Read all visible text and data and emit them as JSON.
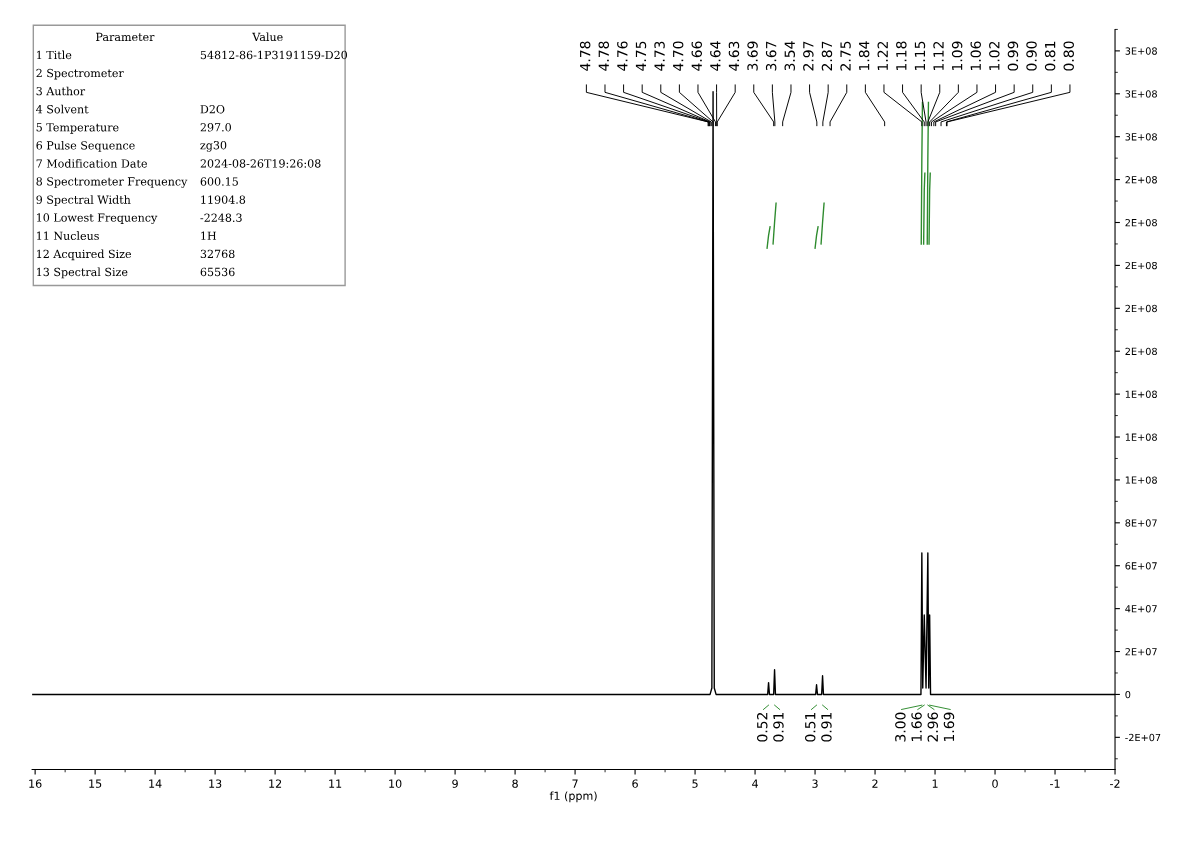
{
  "chart_data": {
    "type": "line",
    "xlabel": "f1 (ppm)",
    "xlim": [
      16.05,
      -2
    ],
    "xticks": [
      16,
      15,
      14,
      13,
      12,
      11,
      10,
      9,
      8,
      7,
      6,
      5,
      4,
      3,
      2,
      1,
      0,
      -1,
      -2
    ],
    "ylim": [
      -35000000,
      310000000
    ],
    "yticks": [
      {
        "value": -20000000,
        "label": "-2E+07"
      },
      0,
      {
        "value": 20000000,
        "label": "2E+07"
      },
      {
        "value": 40000000,
        "label": "4E+07"
      },
      {
        "value": 60000000,
        "label": "6E+07"
      },
      {
        "value": 80000000,
        "label": "8E+07"
      },
      {
        "value": 100000000,
        "label": "1E+08"
      },
      {
        "value": 120000000,
        "label": "1E+08"
      },
      {
        "value": 140000000,
        "label": "1E+08"
      },
      {
        "value": 160000000,
        "label": "2E+08"
      },
      {
        "value": 180000000,
        "label": "2E+08"
      },
      {
        "value": 200000000,
        "label": "2E+08"
      },
      {
        "value": 220000000,
        "label": "2E+08"
      },
      {
        "value": 240000000,
        "label": "2E+08"
      },
      {
        "value": 260000000,
        "label": "3E+08"
      },
      {
        "value": 280000000,
        "label": "3E+08"
      },
      {
        "value": 300000000,
        "label": "3E+08"
      }
    ],
    "grid": false,
    "legend": false,
    "marker": "none",
    "line_style": "solid",
    "series": [
      {
        "color": "#000000",
        "x": [
          16.05,
          4.75,
          4.72,
          4.7,
          4.68,
          4.65,
          3.79,
          3.775,
          3.76,
          3.69,
          3.675,
          3.66,
          3.54,
          2.99,
          2.975,
          2.96,
          2.89,
          2.875,
          2.86,
          2.75,
          1.84,
          1.235,
          1.22,
          1.205,
          1.18,
          1.15,
          1.12,
          1.105,
          1.09,
          1.075,
          1.06,
          1.02,
          0.99,
          0.9,
          0.81,
          0.8,
          -2
        ],
        "values": [
          0,
          0,
          3000000,
          281000000,
          3000000,
          0,
          0,
          5500000,
          0,
          0,
          11500000,
          0,
          0,
          0,
          4500000,
          0,
          0,
          8700000,
          0,
          0,
          0,
          0,
          66000000,
          3000000,
          37000000,
          3000000,
          66000000,
          3000000,
          37000000,
          0,
          0,
          0,
          0,
          0,
          0,
          0,
          0
        ]
      },
      {
        "color": "#2e8b2e",
        "x": [
          3.8,
          3.775,
          3.75
        ],
        "values": [
          208000000,
          214000000,
          218000000
        ]
      },
      {
        "color": "#2e8b2e",
        "x": [
          3.7,
          3.675,
          3.65
        ],
        "values": [
          210000000,
          220000000,
          229000000
        ]
      },
      {
        "color": "#2e8b2e",
        "x": [
          3.0,
          2.975,
          2.95
        ],
        "values": [
          208000000,
          214000000,
          218000000
        ]
      },
      {
        "color": "#2e8b2e",
        "x": [
          2.9,
          2.875,
          2.85
        ],
        "values": [
          210000000,
          220000000,
          229000000
        ]
      },
      {
        "color": "#2e8b2e",
        "x": [
          1.23,
          1.22,
          1.21
        ],
        "values": [
          210000000,
          250000000,
          276000000
        ]
      },
      {
        "color": "#2e8b2e",
        "x": [
          1.19,
          1.18,
          1.17
        ],
        "values": [
          210000000,
          235000000,
          243000000
        ]
      },
      {
        "color": "#2e8b2e",
        "x": [
          1.13,
          1.12,
          1.11
        ],
        "values": [
          210000000,
          250000000,
          276000000
        ]
      },
      {
        "color": "#2e8b2e",
        "x": [
          1.1,
          1.09,
          1.08
        ],
        "values": [
          210000000,
          235000000,
          243000000
        ]
      }
    ],
    "annotations": [
      "Parameter\tValue",
      "1 Title\t54812-86-1P3191159-D20",
      "2 Spectrometer",
      "3 Author",
      "4 Solvent\tD2O",
      "5 Temperature\t297.0",
      "6 Pulse Sequence\tzg30",
      "7 Modification Date\t2024-08-26T19:26:08",
      "8 Spectrometer Frequency\t600.15",
      "9 Spectral Width\t11904.8",
      "10 Lowest Frequency\t-2248.3",
      "11 Nucleus\t1H",
      "12 Acquired Size\t32768",
      "13 Spectral Size\t65536",
      {
        "text": "4.78",
        "x": 4.78
      },
      {
        "text": "4.78",
        "x": 4.78
      },
      {
        "text": "4.76",
        "x": 4.76
      },
      {
        "text": "4.75",
        "x": 4.75
      },
      {
        "text": "4.73",
        "x": 4.73
      },
      {
        "text": "4.70",
        "x": 4.7
      },
      {
        "text": "4.66",
        "x": 4.66
      },
      {
        "text": "4.64",
        "x": 4.64
      },
      {
        "text": "4.63",
        "x": 4.63
      },
      {
        "text": "3.69",
        "x": 3.69
      },
      {
        "text": "3.67",
        "x": 3.67
      },
      {
        "text": "3.54",
        "x": 3.54
      },
      {
        "text": "2.97",
        "x": 2.97
      },
      {
        "text": "2.87",
        "x": 2.87
      },
      {
        "text": "2.75",
        "x": 2.75
      },
      {
        "text": "1.84",
        "x": 1.84
      },
      {
        "text": "1.22",
        "x": 1.22
      },
      {
        "text": "1.18",
        "x": 1.18
      },
      {
        "text": "1.15",
        "x": 1.15
      },
      {
        "text": "1.12",
        "x": 1.12
      },
      {
        "text": "1.09",
        "x": 1.09
      },
      {
        "text": "1.06",
        "x": 1.06
      },
      {
        "text": "1.02",
        "x": 1.02
      },
      {
        "text": "0.99",
        "x": 0.99
      },
      {
        "text": "0.90",
        "x": 0.9
      },
      {
        "text": "0.81",
        "x": 0.81
      },
      {
        "text": "0.80",
        "x": 0.8
      },
      {
        "text": "0.52",
        "x": 3.775,
        "y": 0
      },
      {
        "text": "0.91",
        "x": 3.675,
        "y": 0
      },
      {
        "text": "0.51",
        "x": 2.975,
        "y": 0
      },
      {
        "text": "0.91",
        "x": 2.875,
        "y": 0
      },
      {
        "text": "3.00",
        "x": 1.22,
        "y": 0
      },
      {
        "text": "1.66",
        "x": 1.18,
        "y": 0
      },
      {
        "text": "2.96",
        "x": 1.12,
        "y": 0
      },
      {
        "text": "1.69",
        "x": 1.09,
        "y": 0
      }
    ]
  }
}
